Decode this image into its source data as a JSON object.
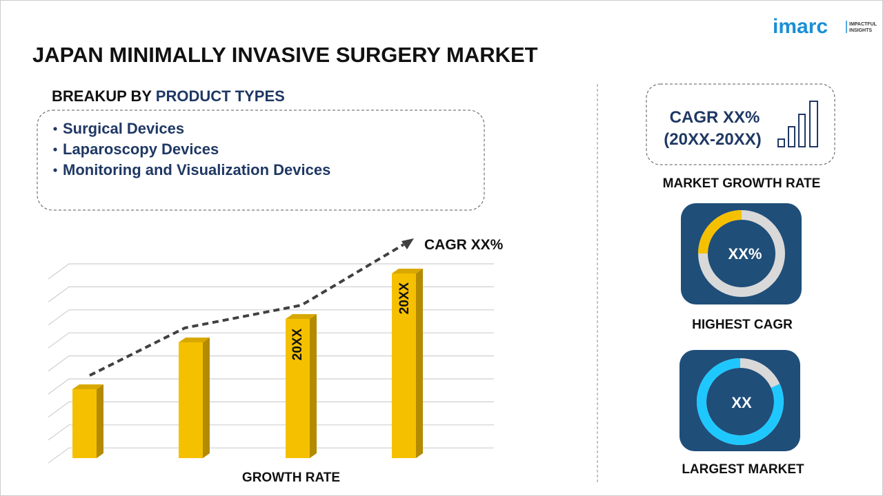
{
  "header": {
    "title": "JAPAN MINIMALLY INVASIVE SURGERY MARKET",
    "logo": {
      "brand": "imarc",
      "tagline_1": "IMPACTFUL",
      "tagline_2": "INSIGHTS"
    }
  },
  "breakup": {
    "heading_prefix": "BREAKUP BY",
    "heading_highlight": "PRODUCT TYPES",
    "items": [
      "Surgical Devices",
      "Laparoscopy Devices",
      "Monitoring and Visualization Devices"
    ]
  },
  "growth_chart": {
    "cagr_label": "CAGR XX%",
    "bar_labels": [
      "20XX",
      "20XX"
    ],
    "axis_label": "GROWTH RATE"
  },
  "side_panel": {
    "cagr": "CAGR XX%",
    "period": "(20XX-20XX)",
    "growth_caption": "MARKET GROWTH RATE",
    "highest_value": "XX%",
    "highest_caption": "HIGHEST CAGR",
    "largest_value": "XX",
    "largest_caption": "LARGEST MARKET"
  }
}
